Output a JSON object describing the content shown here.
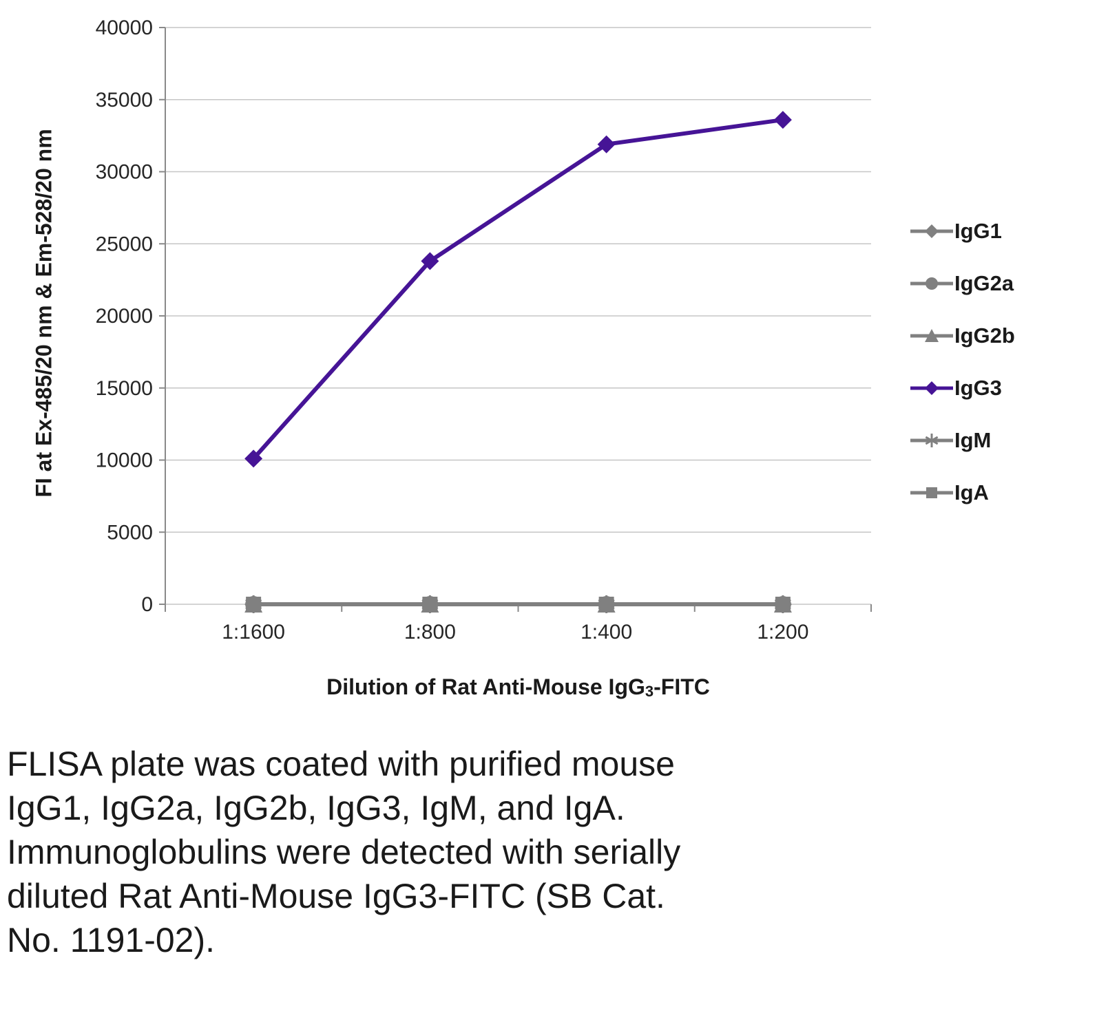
{
  "chart_data": {
    "type": "line",
    "title": "",
    "categories": [
      "1:1600",
      "1:800",
      "1:400",
      "1:200"
    ],
    "series": [
      {
        "name": "IgG1",
        "marker": "diamond",
        "color": "#808080",
        "values": [
          0,
          0,
          0,
          0
        ]
      },
      {
        "name": "IgG2a",
        "marker": "circle",
        "color": "#808080",
        "values": [
          0,
          0,
          0,
          0
        ]
      },
      {
        "name": "IgG2b",
        "marker": "triangle",
        "color": "#808080",
        "values": [
          0,
          0,
          0,
          0
        ]
      },
      {
        "name": "IgG3",
        "marker": "diamond",
        "color": "#461496",
        "values": [
          10100,
          23800,
          31900,
          33600
        ]
      },
      {
        "name": "IgM",
        "marker": "star",
        "color": "#808080",
        "values": [
          0,
          0,
          0,
          0
        ]
      },
      {
        "name": "IgA",
        "marker": "square",
        "color": "#808080",
        "values": [
          0,
          0,
          0,
          0
        ]
      }
    ],
    "xlabel": "Dilution of Rat Anti-Mouse IgG3-FITC",
    "xlabel_parts": [
      "Dilution of Rat Anti-Mouse IgG",
      "3",
      "-FITC"
    ],
    "ylabel": "FI at Ex-485/20 nm & Em-528/20 nm",
    "ylim": [
      0,
      40000
    ],
    "ytick_interval": 5000,
    "grid": true,
    "legend_position": "right",
    "colors": {
      "grid": "#c6c6c6",
      "axis": "#898989",
      "text": "#262626"
    }
  },
  "caption": {
    "lines": [
      "FLISA plate was coated with purified mouse",
      "IgG1, IgG2a, IgG2b, IgG3, IgM, and IgA.",
      "Immunoglobulins were detected with serially",
      "diluted Rat Anti-Mouse IgG3-FITC (SB Cat.",
      "No. 1191-02)."
    ]
  }
}
